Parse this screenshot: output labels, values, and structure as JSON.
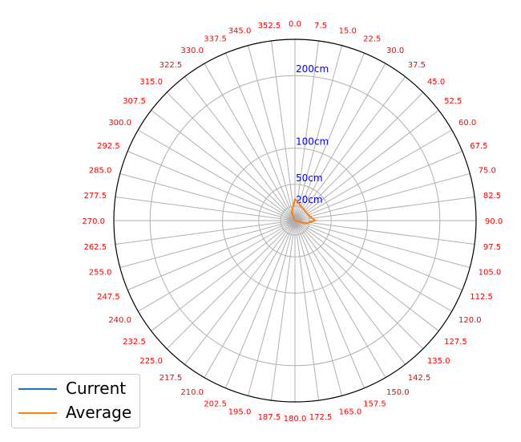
{
  "chart_data": {
    "type": "polar-line",
    "theta_labels": [
      "0.0",
      "7.5",
      "15.0",
      "22.5",
      "30.0",
      "37.5",
      "45.0",
      "52.5",
      "60.0",
      "67.5",
      "75.0",
      "82.5",
      "90.0",
      "97.5",
      "105.0",
      "112.5",
      "120.0",
      "127.5",
      "135.0",
      "142.5",
      "150.0",
      "157.5",
      "165.0",
      "172.5",
      "180.0",
      "187.5",
      "195.0",
      "202.5",
      "210.0",
      "217.5",
      "225.0",
      "232.5",
      "240.0",
      "247.5",
      "255.0",
      "262.5",
      "270.0",
      "277.5",
      "285.0",
      "292.5",
      "300.0",
      "307.5",
      "315.0",
      "322.5",
      "330.0",
      "337.5",
      "345.0",
      "352.5"
    ],
    "r_rings": [
      20,
      50,
      100,
      200
    ],
    "r_ring_labels": [
      "20cm",
      "50cm",
      "100cm",
      "200cm"
    ],
    "r_max": 250,
    "series": [
      {
        "name": "Current",
        "color": "#1f77b4",
        "points": []
      },
      {
        "name": "Average",
        "color": "#ff7f0e",
        "points": [
          {
            "theta": 0,
            "r": 30
          },
          {
            "theta": 67.5,
            "r": 20
          },
          {
            "theta": 90,
            "r": 28
          },
          {
            "theta": 105,
            "r": 15
          },
          {
            "theta": 180,
            "r": 0
          },
          {
            "theta": 270,
            "r": 0
          },
          {
            "theta": 337.5,
            "r": 12
          },
          {
            "theta": 0,
            "r": 30
          }
        ]
      }
    ],
    "tick_color": "#ff0000",
    "ring_label_color": "#0000ff",
    "grid": true
  }
}
